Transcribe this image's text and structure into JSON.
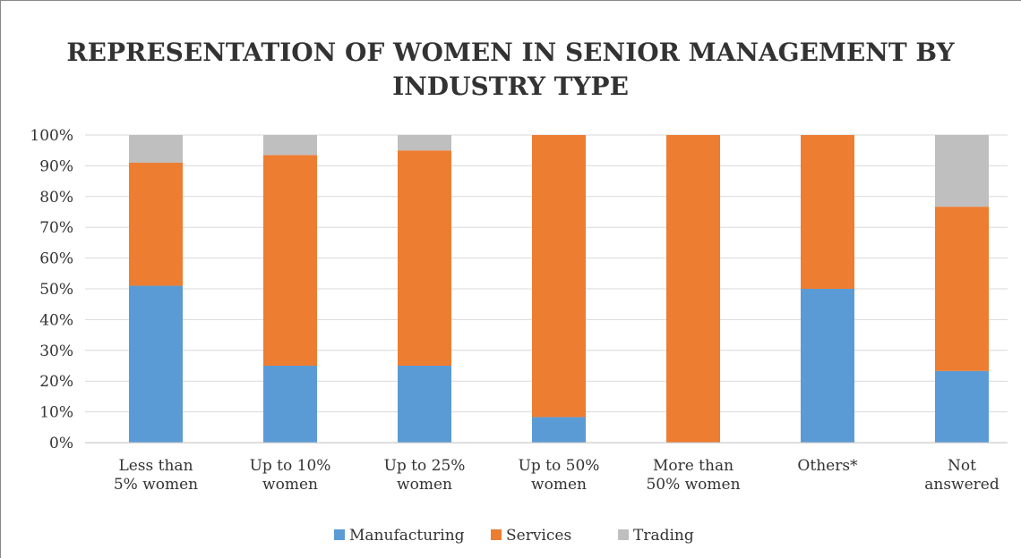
{
  "chart_data": {
    "type": "stacked_bar",
    "title": "REPRESENTATION OF WOMEN IN SENIOR MANAGEMENT BY\nINDUSTRY TYPE",
    "categories": [
      "Less than\n5% women",
      "Up to 10%\nwomen",
      "Up to 25%\nwomen",
      "Up to 50%\nwomen",
      "More than\n50% women",
      "Others*",
      "Not\nanswered"
    ],
    "series": [
      {
        "name": "Manufacturing",
        "color": "#5b9bd5",
        "values": [
          51,
          25,
          25,
          8.3,
          0,
          50,
          23.3
        ]
      },
      {
        "name": "Services",
        "color": "#ed7d31",
        "values": [
          40,
          68.5,
          70,
          91.7,
          100,
          50,
          53.4
        ]
      },
      {
        "name": "Trading",
        "color": "#bfbfbf",
        "values": [
          9,
          6.5,
          5,
          0,
          0,
          0,
          23.3
        ]
      }
    ],
    "ylim": [
      0,
      100
    ],
    "yticks": [
      {
        "value": 0,
        "label": "0%"
      },
      {
        "value": 10,
        "label": "10%"
      },
      {
        "value": 20,
        "label": "20%"
      },
      {
        "value": 30,
        "label": "30%"
      },
      {
        "value": 40,
        "label": "40%"
      },
      {
        "value": 50,
        "label": "50%"
      },
      {
        "value": 60,
        "label": "60%"
      },
      {
        "value": 70,
        "label": "70%"
      },
      {
        "value": 80,
        "label": "80%"
      },
      {
        "value": 90,
        "label": "90%"
      },
      {
        "value": 100,
        "label": "100%"
      }
    ],
    "grid": true,
    "legend": "bottom"
  }
}
